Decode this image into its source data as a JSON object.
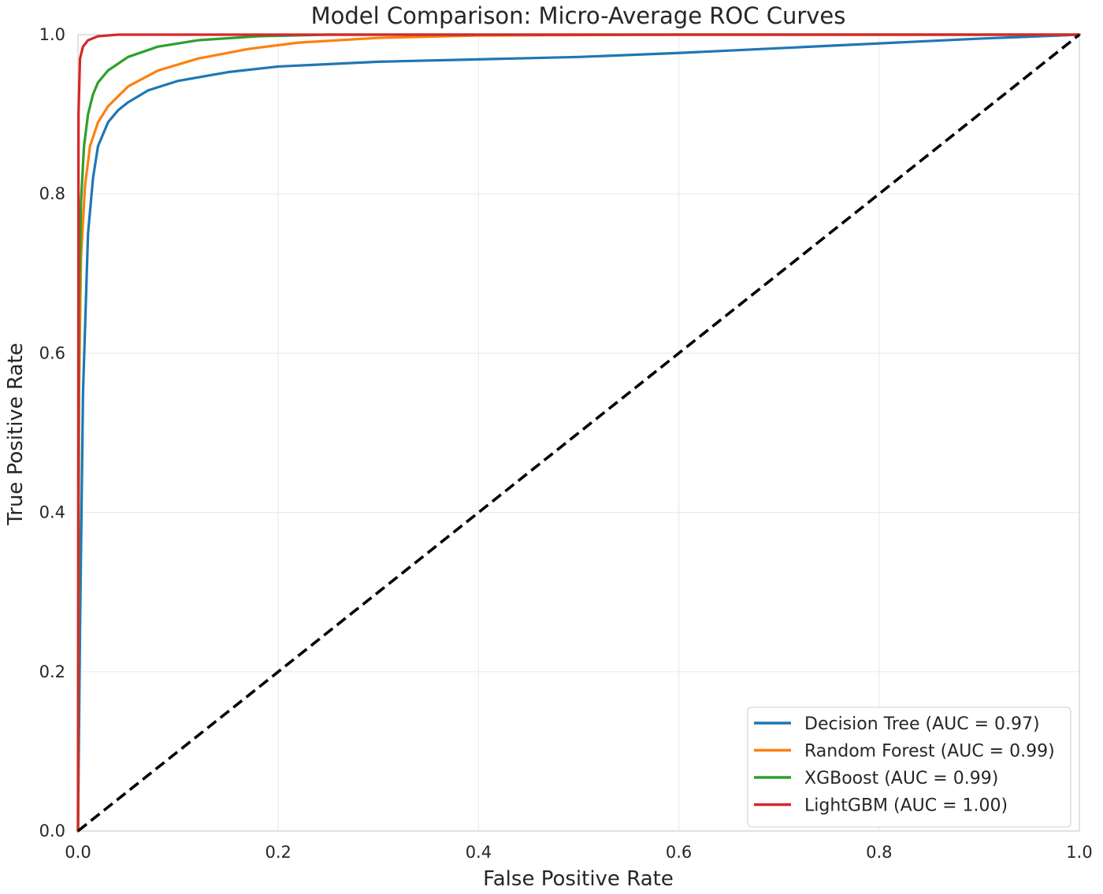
{
  "chart_data": {
    "type": "line",
    "title": "Model Comparison: Micro-Average ROC Curves",
    "xlabel": "False Positive Rate",
    "ylabel": "True Positive Rate",
    "xlim": [
      0.0,
      1.0
    ],
    "ylim": [
      0.0,
      1.0
    ],
    "xticks": [
      "0.0",
      "0.2",
      "0.4",
      "0.6",
      "0.8",
      "1.0"
    ],
    "yticks": [
      "0.0",
      "0.2",
      "0.4",
      "0.6",
      "0.8",
      "1.0"
    ],
    "grid": true,
    "legend_position": "lower-right",
    "series": [
      {
        "name": "Decision Tree (AUC = 0.97)",
        "color": "#1f77b4",
        "points": [
          [
            0,
            0
          ],
          [
            0.002,
            0.25
          ],
          [
            0.005,
            0.55
          ],
          [
            0.01,
            0.75
          ],
          [
            0.015,
            0.82
          ],
          [
            0.02,
            0.86
          ],
          [
            0.03,
            0.89
          ],
          [
            0.04,
            0.905
          ],
          [
            0.05,
            0.915
          ],
          [
            0.07,
            0.93
          ],
          [
            0.1,
            0.942
          ],
          [
            0.15,
            0.953
          ],
          [
            0.2,
            0.96
          ],
          [
            0.3,
            0.966
          ],
          [
            0.4,
            0.969
          ],
          [
            0.5,
            0.972
          ],
          [
            0.6,
            0.977
          ],
          [
            0.7,
            0.983
          ],
          [
            0.8,
            0.989
          ],
          [
            0.9,
            0.995
          ],
          [
            1.0,
            1.0
          ]
        ]
      },
      {
        "name": "Random Forest (AUC = 0.99)",
        "color": "#ff7f0e",
        "points": [
          [
            0,
            0
          ],
          [
            0.001,
            0.55
          ],
          [
            0.003,
            0.72
          ],
          [
            0.007,
            0.81
          ],
          [
            0.012,
            0.86
          ],
          [
            0.02,
            0.89
          ],
          [
            0.03,
            0.91
          ],
          [
            0.05,
            0.935
          ],
          [
            0.08,
            0.955
          ],
          [
            0.12,
            0.97
          ],
          [
            0.17,
            0.982
          ],
          [
            0.22,
            0.99
          ],
          [
            0.3,
            0.996
          ],
          [
            0.4,
            0.999
          ],
          [
            0.6,
            1.0
          ],
          [
            1.0,
            1.0
          ]
        ]
      },
      {
        "name": "XGBoost (AUC = 0.99)",
        "color": "#2ca02c",
        "points": [
          [
            0,
            0
          ],
          [
            0.001,
            0.65
          ],
          [
            0.003,
            0.79
          ],
          [
            0.006,
            0.86
          ],
          [
            0.01,
            0.9
          ],
          [
            0.015,
            0.925
          ],
          [
            0.02,
            0.94
          ],
          [
            0.03,
            0.955
          ],
          [
            0.05,
            0.972
          ],
          [
            0.08,
            0.985
          ],
          [
            0.12,
            0.993
          ],
          [
            0.18,
            0.998
          ],
          [
            0.25,
            1.0
          ],
          [
            1.0,
            1.0
          ]
        ]
      },
      {
        "name": "LightGBM (AUC = 1.00)",
        "color": "#d62728",
        "points": [
          [
            0,
            0
          ],
          [
            0.0005,
            0.9
          ],
          [
            0.002,
            0.97
          ],
          [
            0.005,
            0.985
          ],
          [
            0.01,
            0.993
          ],
          [
            0.02,
            0.998
          ],
          [
            0.04,
            1.0
          ],
          [
            1.0,
            1.0
          ]
        ]
      }
    ],
    "reference_line": {
      "color": "#000000",
      "style": "dashed",
      "points": [
        [
          0,
          0
        ],
        [
          1,
          1
        ]
      ]
    }
  }
}
